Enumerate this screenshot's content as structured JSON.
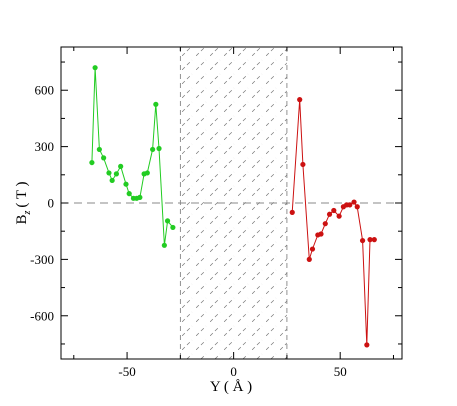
{
  "chart_data": {
    "type": "line",
    "xlabel": "Y ( Å )",
    "ylabel_main": "B",
    "ylabel_sub": "z",
    "ylabel_unit": "( T )",
    "xlim": [
      -81,
      79
    ],
    "ylim": [
      -830,
      830
    ],
    "x_ticks": [
      -50,
      0,
      50
    ],
    "y_ticks": [
      600,
      300,
      0,
      -300,
      -600
    ],
    "x_tick_labels": [
      "-50",
      "0",
      "50"
    ],
    "y_tick_labels": [
      "600",
      "300",
      "0",
      "-300",
      "-600"
    ],
    "hatched_region": [
      -25,
      25
    ],
    "zero_line": 0,
    "grid": false,
    "series": [
      {
        "color": "#22cc22",
        "x": [
          -66.5,
          -65,
          -63,
          -61,
          -58.5,
          -57,
          -55,
          -53,
          -50.5,
          -49,
          -47,
          -45.5,
          -44,
          -42,
          -40.5,
          -38,
          -36.5,
          -35,
          -32.5,
          -31,
          -28.5
        ],
        "y": [
          215,
          720,
          285,
          240,
          160,
          120,
          155,
          195,
          100,
          50,
          25,
          25,
          30,
          155,
          160,
          285,
          525,
          290,
          -225,
          -95,
          -130
        ]
      },
      {
        "color": "#cc1111",
        "x": [
          27.5,
          31,
          32.5,
          35.5,
          37,
          39.5,
          41,
          43,
          45,
          47,
          49.5,
          51.5,
          53,
          54.5,
          56.5,
          58,
          60.5,
          62.5,
          64,
          66
        ],
        "y": [
          -50,
          550,
          205,
          -300,
          -245,
          -170,
          -165,
          -110,
          -60,
          -40,
          -70,
          -20,
          -10,
          -10,
          5,
          -20,
          -200,
          -755,
          -195,
          -195
        ]
      }
    ]
  }
}
